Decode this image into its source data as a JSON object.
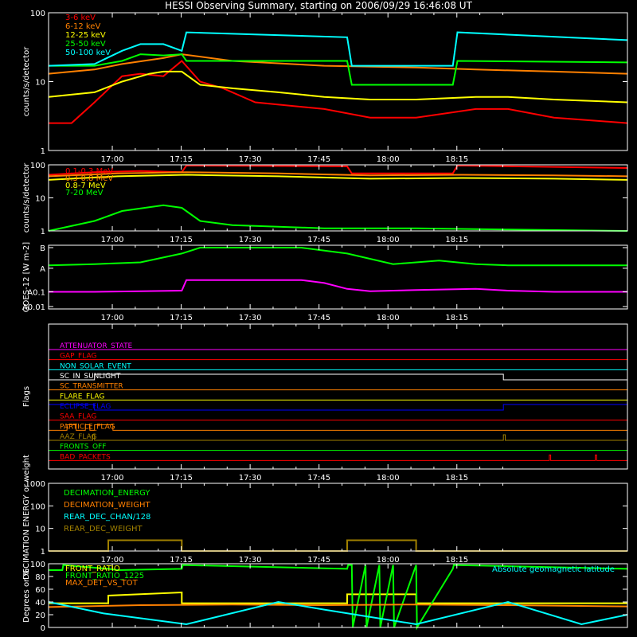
{
  "title": "HESSI Observing Summary, starting on 2006/09/29 16:46:08 UT",
  "colors": {
    "red": "#ff0000",
    "orange": "#ff8000",
    "yellow": "#ffff00",
    "green": "#00ff00",
    "cyan": "#00ffff",
    "magenta": "#ff00ff",
    "blue": "#0000ff",
    "olive": "#a08000",
    "axis": "#ffffff",
    "background": "#000000"
  },
  "time_ticks": [
    "17:00",
    "17:15",
    "17:30",
    "17:45",
    "18:00",
    "18:15"
  ],
  "chart_data": [
    {
      "type": "line",
      "panel": "low-energy-rates",
      "ylabel": "counts/s/detector",
      "ylog": true,
      "ylim": [
        1,
        100
      ],
      "y_tick_labels": [
        "1",
        "10",
        "100"
      ],
      "x_range_min": [
        0,
        126
      ],
      "series": [
        {
          "name": "3-6 keV",
          "color": "#ff0000",
          "x": [
            0,
            5,
            10,
            14,
            16,
            20,
            25,
            29,
            33,
            38,
            45,
            60,
            70,
            80,
            93,
            100,
            110,
            126
          ],
          "y": [
            2.5,
            2.5,
            5,
            9,
            12,
            13,
            12,
            20,
            10,
            8,
            5,
            4,
            3,
            3,
            4,
            4,
            3,
            2.5
          ]
        },
        {
          "name": "6-12 keV",
          "color": "#ff8000",
          "x": [
            0,
            10,
            16,
            25,
            29,
            40,
            60,
            80,
            93,
            110,
            126
          ],
          "y": [
            13,
            15,
            18,
            22,
            25,
            20,
            17,
            16,
            15,
            14,
            13
          ]
        },
        {
          "name": "12-25 keV",
          "color": "#ffff00",
          "x": [
            0,
            10,
            16,
            22,
            25,
            29,
            33,
            40,
            50,
            60,
            70,
            80,
            93,
            100,
            110,
            126
          ],
          "y": [
            6,
            7,
            10,
            13,
            14,
            14,
            9,
            8,
            7,
            6,
            5.5,
            5.5,
            6,
            6,
            5.5,
            5
          ]
        },
        {
          "name": "25-50 keV",
          "color": "#00ff00",
          "x": [
            0,
            10,
            16,
            20,
            25,
            29,
            30,
            40,
            60,
            65,
            66,
            80,
            88,
            89,
            126
          ],
          "y": [
            17,
            17,
            20,
            25,
            24,
            25,
            20,
            20,
            20,
            20,
            9,
            9,
            9,
            20,
            19
          ]
        },
        {
          "name": "50-100 keV",
          "color": "#00ffff",
          "x": [
            0,
            10,
            16,
            20,
            25,
            29,
            30,
            65,
            66,
            80,
            88,
            89,
            126
          ],
          "y": [
            17,
            18,
            28,
            35,
            35,
            28,
            52,
            44,
            17,
            17,
            17,
            52,
            40
          ]
        }
      ]
    },
    {
      "type": "line",
      "panel": "high-energy-rates",
      "ylabel": "counts/s/detector",
      "ylog": true,
      "ylim": [
        1,
        100
      ],
      "y_tick_labels": [
        "1",
        "10",
        "100"
      ],
      "x_range_min": [
        0,
        126
      ],
      "series": [
        {
          "name": "0.1-0.3 MeV",
          "color": "#ff0000",
          "x": [
            0,
            10,
            20,
            29,
            30,
            65,
            66,
            80,
            88,
            89,
            126
          ],
          "y": [
            50,
            60,
            65,
            60,
            95,
            90,
            55,
            55,
            55,
            95,
            80
          ]
        },
        {
          "name": "0.3-0.8 MeV",
          "color": "#ff8000",
          "x": [
            0,
            15,
            30,
            50,
            70,
            90,
            110,
            126
          ],
          "y": [
            45,
            55,
            60,
            55,
            48,
            50,
            48,
            45
          ]
        },
        {
          "name": "0.8-7 MeV",
          "color": "#ffff00",
          "x": [
            0,
            15,
            30,
            50,
            70,
            90,
            110,
            126
          ],
          "y": [
            35,
            45,
            50,
            45,
            38,
            40,
            38,
            35
          ]
        },
        {
          "name": "7-20 MeV",
          "color": "#00ff00",
          "x": [
            0,
            10,
            16,
            25,
            29,
            33,
            40,
            60,
            80,
            100,
            126
          ],
          "y": [
            1,
            2,
            4,
            6,
            5,
            2,
            1.5,
            1.2,
            1.2,
            1.1,
            1
          ]
        }
      ]
    },
    {
      "type": "line",
      "panel": "goes",
      "ylabel": "GOES-12 [W m-2]",
      "y_tick_labels": [
        "A0.01",
        "A0.1",
        "A",
        "B"
      ],
      "x_range_min": [
        0,
        126
      ],
      "series": [
        {
          "name": "GOES long",
          "color": "#00ff00",
          "x": [
            0,
            10,
            20,
            29,
            33,
            40,
            55,
            65,
            75,
            85,
            93,
            100,
            110,
            126
          ],
          "y": [
            0.7,
            0.72,
            0.75,
            0.9,
            1.0,
            1.0,
            1.0,
            0.9,
            0.72,
            0.78,
            0.72,
            0.7,
            0.7,
            0.7
          ]
        },
        {
          "name": "GOES short",
          "color": "#ff00ff",
          "x": [
            0,
            10,
            20,
            29,
            30,
            55,
            60,
            65,
            70,
            80,
            93,
            100,
            110,
            126
          ],
          "y": [
            0.25,
            0.25,
            0.26,
            0.27,
            0.45,
            0.45,
            0.4,
            0.3,
            0.26,
            0.28,
            0.3,
            0.27,
            0.25,
            0.25
          ]
        }
      ]
    },
    {
      "type": "table",
      "panel": "flags",
      "ylabel": "Flags",
      "flags": [
        {
          "name": "ATTENUATOR_STATE",
          "color": "#ff00ff",
          "on": []
        },
        {
          "name": "GAP_FLAG",
          "color": "#ff0000",
          "on": []
        },
        {
          "name": "NON_SOLAR_EVENT",
          "color": "#00ffff",
          "on": []
        },
        {
          "name": "SC_IN_SUNLIGHT",
          "color": "#ffffff",
          "on": [
            [
              10,
              99
            ]
          ]
        },
        {
          "name": "SC_TRANSMITTER",
          "color": "#ff8000",
          "on": []
        },
        {
          "name": "FLARE_FLAG",
          "color": "#ffff00",
          "on": []
        },
        {
          "name": "ECLIPSE_FLAG",
          "color": "#0000ff",
          "on": [
            [
              0,
              10
            ],
            [
              99,
              126
            ]
          ]
        },
        {
          "name": "SAA_FLAG",
          "color": "#ff0000",
          "on": []
        },
        {
          "name": "PARTICLE_FLAG",
          "color": "#ff8000",
          "on": [
            [
              4,
              6
            ],
            [
              8,
              9
            ],
            [
              10,
              14
            ]
          ]
        },
        {
          "name": "AAZ_FLAG",
          "color": "#a08000",
          "on": [
            [
              9.6,
              10
            ],
            [
              99,
              99.4
            ]
          ]
        },
        {
          "name": "FRONTS_OFF",
          "color": "#00ff00",
          "on": []
        },
        {
          "name": "BAD_PACKETS",
          "color": "#ff0000",
          "on": [
            [
              109,
              109.3
            ],
            [
              119,
              119.3
            ]
          ]
        }
      ]
    },
    {
      "type": "line",
      "panel": "decimation",
      "ylabel": "DECIMATION ENERGY or weight",
      "ylog": true,
      "ylim": [
        1,
        1000
      ],
      "y_tick_labels": [
        "1",
        "10",
        "100",
        "1000"
      ],
      "x_range_min": [
        0,
        126
      ],
      "series": [
        {
          "name": "DECIMATION_ENERGY",
          "color": "#00ff00",
          "x": [],
          "y": []
        },
        {
          "name": "DECIMATION_WEIGHT",
          "color": "#ff8000",
          "x": [],
          "y": []
        },
        {
          "name": "REAR_DEC_CHAN/128",
          "color": "#00ffff",
          "x": [],
          "y": []
        },
        {
          "name": "REAR_DEC_WEIGHT",
          "color": "#a08000",
          "x": [
            0,
            0.0,
            13,
            13,
            29,
            29,
            65,
            65,
            80,
            80,
            126
          ],
          "y": [
            1,
            1,
            1,
            3,
            3,
            1,
            1,
            3,
            3,
            1,
            1
          ]
        }
      ]
    },
    {
      "type": "line",
      "panel": "ratios",
      "ylabel": "Degrees or %",
      "ylim": [
        0,
        100
      ],
      "y_tick_labels": [
        "0",
        "20",
        "40",
        "60",
        "80",
        "100"
      ],
      "x_range_min": [
        0,
        126
      ],
      "annotation": "Absolute geomagnetic latitude",
      "series": [
        {
          "name": "FRONT_RATIO",
          "color": "#ffff00",
          "x": [
            0,
            13,
            13,
            29,
            29,
            65,
            65,
            80,
            80,
            126
          ],
          "y": [
            38,
            38,
            50,
            55,
            38,
            38,
            52,
            52,
            38,
            38
          ]
        },
        {
          "name": "FRONT_RATIO_1225",
          "color": "#00ff00",
          "x": [
            0,
            3,
            3.2,
            13,
            15,
            29,
            29.2,
            65,
            65.2,
            66,
            66.2,
            69,
            69.2,
            72,
            72.2,
            75,
            75.2,
            80,
            80.2,
            88,
            88.2,
            126
          ],
          "y": [
            90,
            90,
            98,
            92,
            90,
            92,
            98,
            92,
            98,
            98,
            0,
            98,
            0,
            98,
            0,
            98,
            0,
            98,
            0,
            92,
            98,
            92
          ]
        },
        {
          "name": "MAX_DET_VS_TOT",
          "color": "#ff8000",
          "x": [
            0,
            20,
            40,
            60,
            80,
            100,
            126
          ],
          "y": [
            32,
            35,
            36,
            35,
            36,
            35,
            33
          ]
        },
        {
          "name": "Absolute geomagnetic latitude",
          "color": "#00ffff",
          "x": [
            0,
            12,
            30,
            50,
            60,
            80,
            100,
            116,
            126
          ],
          "y": [
            40,
            22,
            5,
            40,
            28,
            5,
            40,
            5,
            20
          ]
        }
      ]
    }
  ]
}
